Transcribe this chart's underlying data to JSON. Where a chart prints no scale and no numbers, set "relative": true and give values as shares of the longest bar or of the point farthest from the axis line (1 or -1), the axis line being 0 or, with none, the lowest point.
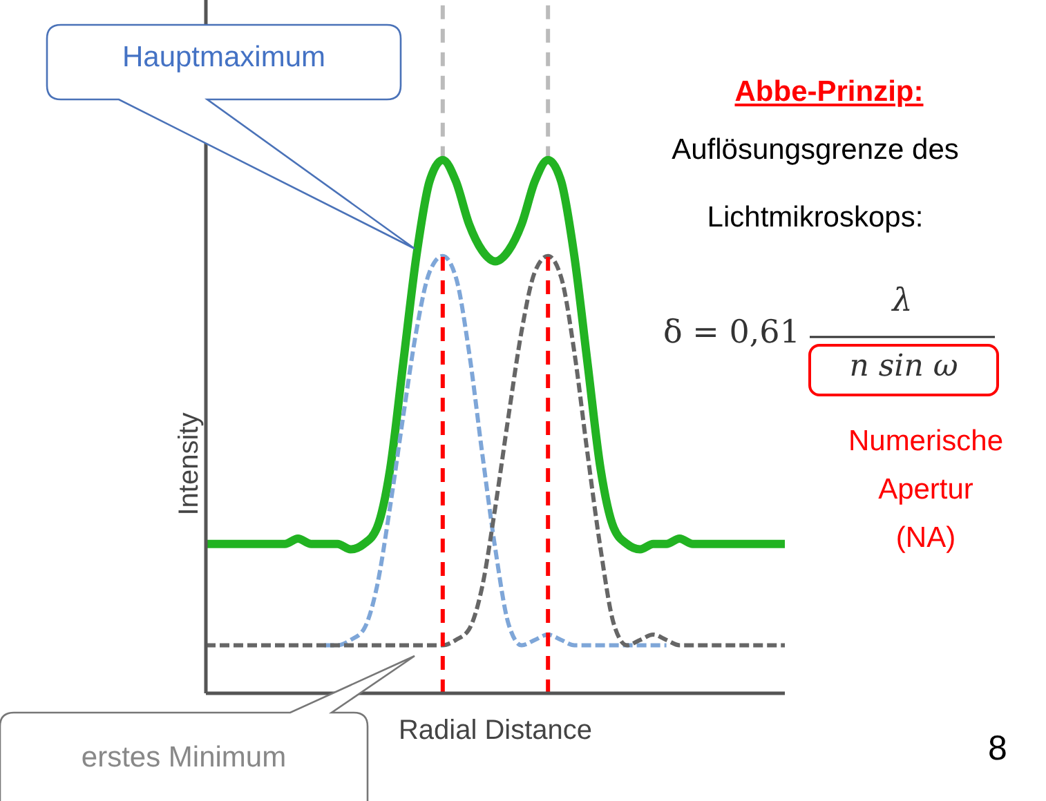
{
  "chart_data": {
    "type": "line",
    "relative": true,
    "xlabel": "Radial Distance",
    "ylabel": "Intensity",
    "categories": [
      null,
      null,
      null,
      null,
      null,
      null,
      null,
      null,
      null,
      null,
      null,
      null,
      null,
      null,
      null,
      null,
      null,
      null,
      null,
      null,
      null,
      null,
      null,
      null,
      null,
      null,
      null,
      null,
      null,
      null,
      null,
      null,
      null,
      null,
      null,
      null,
      null,
      null,
      null,
      null,
      null,
      null,
      null,
      null,
      null
    ],
    "series": [
      {
        "color": "#22b322",
        "line_style": "solid",
        "values": [
          0.28,
          0.28,
          0.28,
          0.28,
          0.28,
          0.28,
          0.28,
          0.29,
          0.28,
          0.28,
          0.28,
          0.27,
          0.28,
          0.31,
          0.42,
          0.62,
          0.82,
          0.96,
          1,
          0.96,
          0.88,
          0.83,
          0.81,
          0.83,
          0.88,
          0.96,
          1,
          0.96,
          0.82,
          0.62,
          0.42,
          0.31,
          0.28,
          0.27,
          0.28,
          0.28,
          0.29,
          0.28,
          0.28,
          0.28,
          0.28,
          0.28,
          0.28,
          0.28,
          0.28
        ]
      },
      {
        "color": "#7ea6d8",
        "line_style": "dashed",
        "values": [
          null,
          null,
          null,
          null,
          null,
          null,
          null,
          null,
          null,
          0.09,
          0.09,
          0.1,
          0.12,
          0.2,
          0.35,
          0.52,
          0.68,
          0.79,
          0.82,
          0.78,
          0.64,
          0.45,
          0.27,
          0.13,
          0.09,
          0.1,
          0.11,
          0.1,
          0.09,
          0.09,
          0.09,
          0.09,
          0.09,
          0.09,
          0.09,
          0.09,
          null,
          null,
          null,
          null,
          null,
          null,
          null,
          null,
          null
        ]
      },
      {
        "color": "#666666",
        "line_style": "dashed",
        "values": [
          0.09,
          0.09,
          0.09,
          0.09,
          0.09,
          0.09,
          0.09,
          0.09,
          0.09,
          0.09,
          0.09,
          0.09,
          0.09,
          0.09,
          0.09,
          0.09,
          0.09,
          0.09,
          0.09,
          0.1,
          0.12,
          0.2,
          0.35,
          0.52,
          0.68,
          0.79,
          0.82,
          0.78,
          0.64,
          0.45,
          0.27,
          0.13,
          0.09,
          0.1,
          0.11,
          0.1,
          0.09,
          0.09,
          0.09,
          0.09,
          0.09,
          0.09,
          0.09,
          0.09,
          0.09
        ]
      }
    ],
    "marker": "none",
    "grid": false,
    "annotations": [
      "Hauptmaximum",
      "erstes Minimum",
      "Abbe-Prinzip:",
      "Auflösungsgrenze des",
      "Lichtmikroskops:",
      "δ = 0,61",
      "λ",
      "n sin ω",
      "Numerische",
      "Apertur",
      "(NA)",
      "8"
    ]
  }
}
